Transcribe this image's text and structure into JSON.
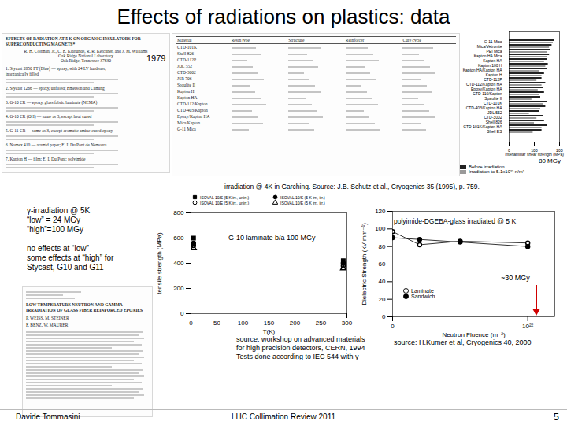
{
  "slide": {
    "title": "Effects of radiations on plastics: data",
    "footer": {
      "left": "Davide Tommasini",
      "center": "LHC Collimation Review 2011",
      "right": "5"
    },
    "scan_paper_1979": {
      "year": "1979",
      "heading": "EFFECTS OF RADIATION AT 5 K ON ORGANIC INSULATORS FOR SUPERCONDUCTING MAGNETS*",
      "authors": "R. H. Coltman, Jr., C. E. Klabunde, R. R. Kerchner, and J. M. Williams",
      "affiliation": [
        "Oak Ridge National Laboratory",
        "Oak Ridge, Tennessee 37830"
      ],
      "items": [
        "1. Stycast 2850 FT (Blue) — epoxy, with 24 LV hardener; inorganically filled",
        "2. Stycast 1266 — epoxy, unfilled; Emerson and Cuming",
        "3. G-10 CR — epoxy, glass fabric laminate (NEMA)",
        "4. G-10 CR (OH) — same as 3, except heat cured",
        "5. G-11 CR — same as 3, except aromatic amine-cured epoxy",
        "6. Nomex 410 — aramid paper; E. I. Du Pont de Nemours",
        "7. Kapton H — film; E. I. Du Pont; polyimide"
      ]
    },
    "scan_table": {
      "headers": [
        "Material",
        "Resin type",
        "Structure",
        "Reinforcer",
        "Cure cycle"
      ],
      "materials": [
        "CTD-101K",
        "Shell 826",
        "CTD-112P",
        "JDL 552",
        "CTD-3002",
        "JSR 706",
        "Spaulite II",
        "Kapton H",
        "Kapton HA",
        "CTD-112/Kapton",
        "CTD-403/Kapton",
        "Epoxy/Kapton HA",
        "Mica/Kapton",
        "G-11 Mica"
      ]
    },
    "caption_top": "irradiation @ 4K in Garching. Source: J.B. Schutz et al., Cryogenics 35 (1995), p. 759.",
    "left_text": [
      "γ-irradiation @ 5K",
      "“low” = 24 MGy",
      "“high”=100 MGy",
      "",
      "no effects at “low”",
      "some effects at “high” for",
      "Stycast, G10 and G11"
    ],
    "scan_paper_2": {
      "heading": "LOW TEMPERATURE NEUTRON AND GAMMA IRRADIATION OF GLASS FIBER REINFORCED EPOXIES",
      "authors": [
        "P. WEISS, M. STEINER",
        "F. BENZ, W. MAURER"
      ]
    },
    "source_middle": [
      "source: workshop on advanced materials",
      "for high precision detectors, CERN, 1994",
      "Tests done according to IEC 544 with γ"
    ],
    "source_right": "source: H.Kumer et al, Cryogenics 40, 2000"
  },
  "chart_data": [
    {
      "type": "bar",
      "orientation": "horizontal",
      "xlabel": "Interlaminar shear strength (MPa)",
      "categories": [
        "G-11 Mica",
        "Mica/Vetronite",
        "PEI Mica",
        "Kapton HA Mica",
        "Kapton HA",
        "Kapton 100 H",
        "Kapton HA/Kapton HA",
        "Kapton H",
        "CTD-112P",
        "CTD-112/Kapton HA",
        "Epoxy/Kapton HA",
        "CTD-110/Kapton",
        "Spaulite II",
        "CTD-101K",
        "CTD-403/Kapton HA",
        "JDL 552",
        "CTD-3002",
        "Shell 826",
        "CTD-101K/Kapton HA",
        "Shell ES"
      ],
      "series": [
        {
          "name": "Before irradiation",
          "color": "#222222",
          "values": [
            180,
            170,
            165,
            160,
            150,
            155,
            150,
            140,
            130,
            145,
            135,
            140,
            125,
            150,
            145,
            120,
            135,
            140,
            150,
            130
          ]
        },
        {
          "name": "Irradiation to 5.1x10²² n/m²",
          "color": "#9a9a9a",
          "values": [
            175,
            160,
            150,
            150,
            140,
            145,
            120,
            130,
            110,
            130,
            115,
            120,
            90,
            135,
            125,
            80,
            110,
            100,
            130,
            95
          ]
        }
      ],
      "xlim": [
        0,
        200
      ],
      "xticks": [
        0,
        100,
        200
      ],
      "annotations": [
        "~80 MGy"
      ]
    },
    {
      "type": "scatter",
      "xlabel": "T(K)",
      "ylabel": "tensile strength (MPa)",
      "series": [
        {
          "name": "ISOVAL 10/S (5 K irr., unirr.)",
          "marker": "square",
          "color": "#000000",
          "x": [
            5,
            293
          ],
          "values": [
            600,
            420
          ]
        },
        {
          "name": "ISOVAL 10/S (5 K irr., irr.)",
          "marker": "circle",
          "color": "#000000",
          "x": [
            5,
            293
          ],
          "values": [
            560,
            400
          ]
        },
        {
          "name": "ISOVAL 10/E (5 K irr., unirr.)",
          "marker": "circle-open",
          "color": "#000000",
          "x": [
            5,
            293
          ],
          "values": [
            540,
            380
          ]
        },
        {
          "name": "ISOVAL 10/E (5 K irr., irr.)",
          "marker": "triangle-open",
          "color": "#000000",
          "x": [
            5,
            293
          ],
          "values": [
            520,
            360
          ]
        }
      ],
      "xlim": [
        0,
        300
      ],
      "xticks": [
        0,
        50,
        100,
        150,
        200,
        250,
        300
      ],
      "ylim": [
        0,
        800
      ],
      "yticks": [
        0,
        200,
        400,
        600,
        800
      ],
      "annotations": [
        "G-10 laminate b/a 100 MGy"
      ]
    },
    {
      "type": "line",
      "xlabel": "Neutron Fluence (m⁻²)",
      "ylabel": "Dielectric Strength (kV mm⁻¹)",
      "series": [
        {
          "name": "Laminate",
          "marker": "circle-open",
          "color": "#000000",
          "x": [
            0,
            2e+21,
            5e+21,
            1e+22
          ],
          "values": [
            97,
            82,
            86,
            84
          ]
        },
        {
          "name": "Sandwich",
          "marker": "circle",
          "color": "#000000",
          "x": [
            0,
            2e+21,
            5e+21,
            1e+22
          ],
          "values": [
            90,
            88,
            85,
            80
          ]
        }
      ],
      "xlim": [
        0,
        1.2e+22
      ],
      "xticks": [
        {
          "value": 0,
          "label": "0"
        },
        {
          "value": 1e+22,
          "label": "10²²"
        }
      ],
      "ylim": [
        0,
        120
      ],
      "yticks": [
        0,
        20,
        40,
        60,
        80,
        100,
        120
      ],
      "annotations": [
        "polyimide-DGEBA-glass irradiated @ 5 K",
        "~30 MGy"
      ]
    }
  ]
}
